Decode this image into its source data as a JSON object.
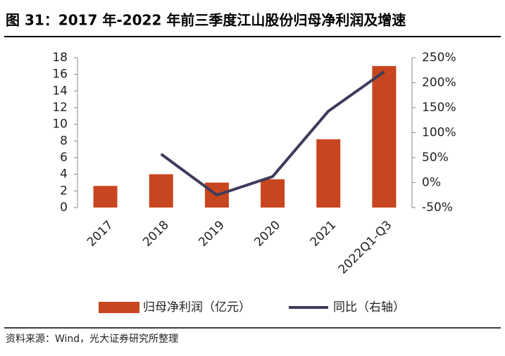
{
  "chart_data": {
    "type": "bar-line",
    "title": "图 31：2017 年-2022 年前三季度江山股份归母净利润及增速",
    "source": "资料来源：Wind，光大证券研究所整理",
    "categories": [
      "2017",
      "2018",
      "2019",
      "2020",
      "2021",
      "2022Q1-Q3"
    ],
    "series": [
      {
        "name": "归母净利润（亿元）",
        "type": "bar",
        "color": "#c8461f",
        "values": [
          2.6,
          4.0,
          3.0,
          3.4,
          8.2,
          17.0
        ]
      },
      {
        "name": "同比（右轴）",
        "type": "line",
        "color": "#3f3b5b",
        "axis": "y2",
        "values": [
          null,
          57,
          -25,
          12,
          143,
          222
        ]
      }
    ],
    "ylim": [
      0,
      18
    ],
    "yticks": [
      0,
      2,
      4,
      6,
      8,
      10,
      12,
      14,
      16,
      18
    ],
    "y2lim": [
      -50,
      250
    ],
    "y2ticks": [
      {
        "value": -50,
        "label": "-50%"
      },
      {
        "value": 0,
        "label": "0%"
      },
      {
        "value": 50,
        "label": "50%"
      },
      {
        "value": 100,
        "label": "100%"
      },
      {
        "value": 150,
        "label": "150%"
      },
      {
        "value": 200,
        "label": "200%"
      },
      {
        "value": 250,
        "label": "250%"
      }
    ]
  }
}
